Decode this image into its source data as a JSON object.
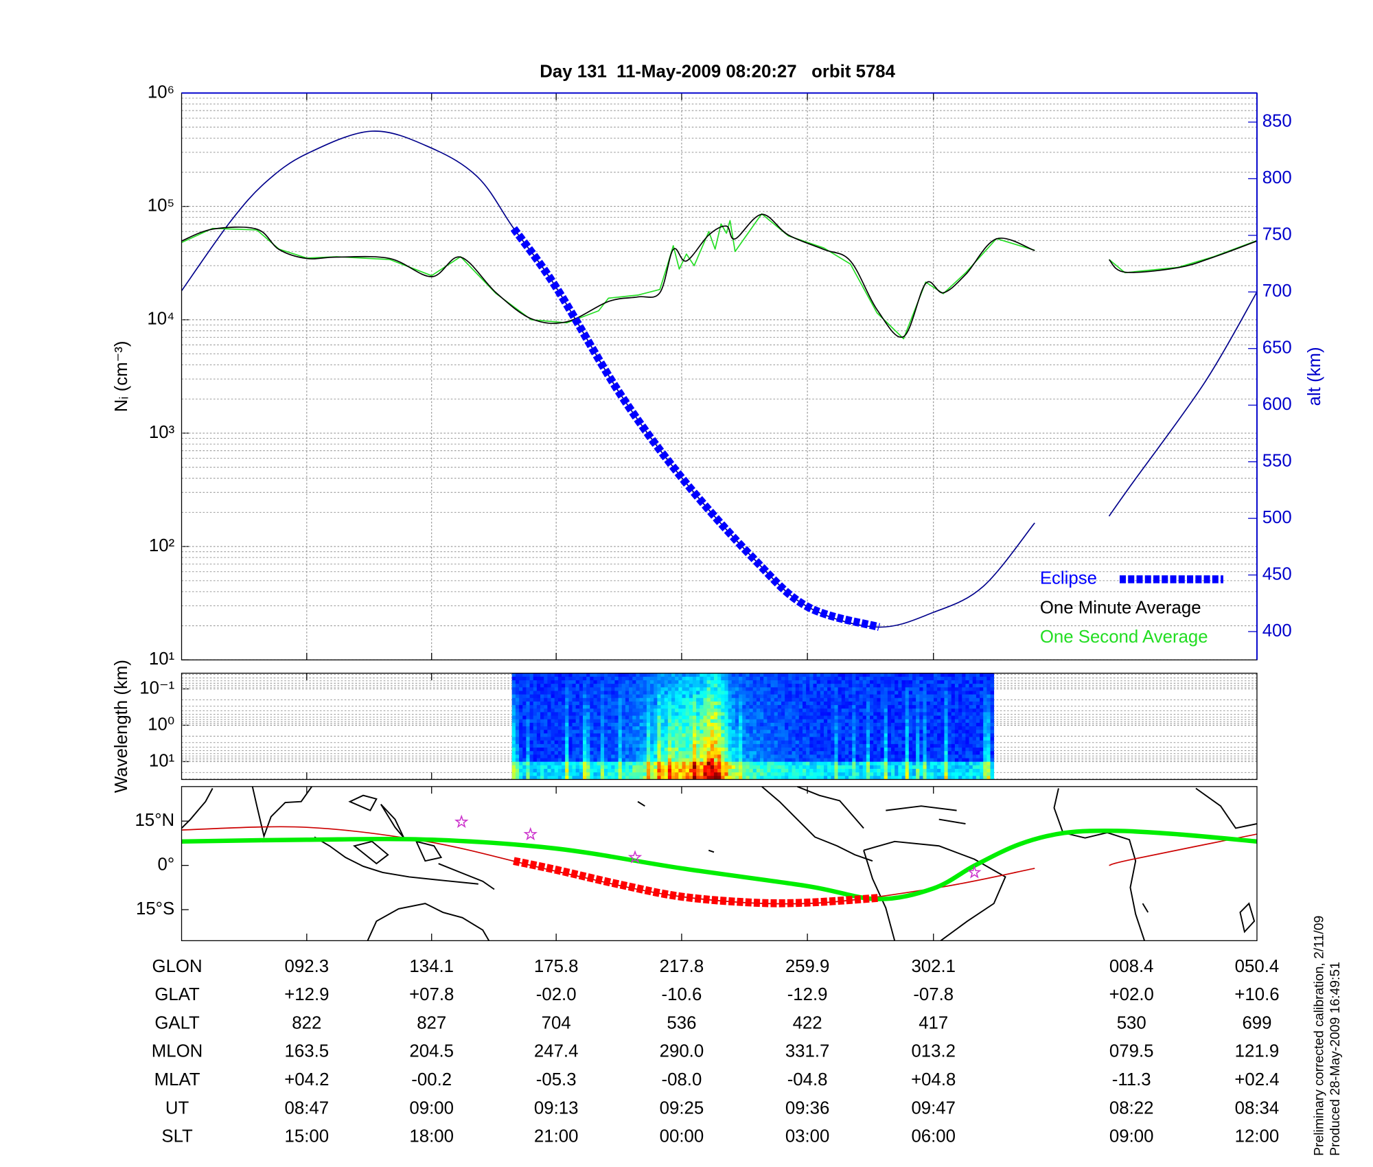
{
  "chart_data": [
    {
      "type": "line",
      "title": "Day 131  11-May-2009 08:20:27   orbit 5784",
      "y_label": "Nᵢ (cm⁻³)",
      "y2_label": "alt (km)",
      "xlim": [
        50.4,
        410.4
      ],
      "xticks": [
        92.3,
        134.1,
        175.8,
        217.8,
        259.9,
        302.1
      ],
      "ylim": [
        10,
        1000000
      ],
      "y_scale": "log",
      "yticks": [
        {
          "value": 10,
          "label": "10¹"
        },
        {
          "value": 100,
          "label": "10²"
        },
        {
          "value": 1000,
          "label": "10³"
        },
        {
          "value": 10000,
          "label": "10⁴"
        },
        {
          "value": 100000,
          "label": "10⁵"
        },
        {
          "value": 1000000,
          "label": "10⁶"
        }
      ],
      "y2lim": [
        375,
        875.7
      ],
      "y2ticks": [
        400,
        450,
        500,
        550,
        600,
        650,
        700,
        750,
        800,
        850
      ],
      "y2_color": "#0000cc",
      "grid": true,
      "legend": "lower right",
      "series": [
        {
          "color": "#00008b",
          "axis": "y2",
          "line_style": "thin",
          "smooth": true,
          "x": [
            50.4,
            66.7,
            78.6,
            92.3,
            114.2,
            134.1,
            149.7,
            161.6,
            175.8,
            197.2,
            217.8,
            241.7,
            259.9,
            283.2,
            302.1,
            318.8,
            336.0,
            348.0,
            360.9,
            368.4,
            392.9,
            410.4
          ],
          "values": [
            701,
            762,
            797,
            822,
            842,
            827,
            801,
            756,
            704,
            610,
            536,
            465,
            422,
            404,
            417,
            440,
            496,
            null,
            502,
            530,
            620,
            700
          ]
        },
        {
          "name": "One Second Average",
          "color": "#22dd22",
          "line_style": "thin",
          "smooth": false,
          "x": [
            50.4,
            60.8,
            75.6,
            83.0,
            92.3,
            102.3,
            120.1,
            134.1,
            143.8,
            155.7,
            167.5,
            179.4,
            190.0,
            193.3,
            203.1,
            210.5,
            213.0,
            215.0,
            217.0,
            219.4,
            222.0,
            226.9,
            229.0,
            231.0,
            232.8,
            234.0,
            235.7,
            244.6,
            253.5,
            265.4,
            274.3,
            283.2,
            292.1,
            299.5,
            305.4,
            312.9,
            323.2,
            336.0,
            348.0,
            360.9,
            366.2,
            384.0,
            395.9,
            410.4
          ],
          "values": [
            48000,
            64000,
            62000,
            42000,
            35000,
            36000,
            34000,
            24500,
            36000,
            17000,
            10000,
            9400,
            12000,
            15500,
            16500,
            18500,
            30000,
            45000,
            28000,
            38000,
            30000,
            60000,
            42000,
            70000,
            58000,
            75000,
            40000,
            86000,
            55000,
            43000,
            31000,
            11500,
            6800,
            21500,
            17000,
            26000,
            52000,
            41000,
            null,
            34000,
            26000,
            29000,
            36000,
            50000
          ]
        },
        {
          "name": "One Minute Average",
          "color": "#000000",
          "line_style": "thin",
          "smooth": true,
          "x": [
            50.4,
            60.8,
            75.6,
            83.0,
            92.3,
            102.3,
            120.1,
            134.1,
            143.8,
            155.7,
            167.5,
            179.4,
            193.3,
            203.1,
            210.5,
            215.0,
            219.4,
            226.9,
            232.8,
            235.7,
            244.6,
            253.5,
            265.4,
            274.3,
            283.2,
            292.1,
            299.5,
            305.4,
            312.9,
            323.2,
            336.0,
            348.0,
            360.9,
            366.2,
            384.0,
            395.9,
            410.4
          ],
          "values": [
            49500,
            63000,
            63000,
            41700,
            34700,
            35700,
            34700,
            24000,
            35700,
            17300,
            10200,
            9600,
            14500,
            15900,
            17300,
            41700,
            33000,
            56000,
            67000,
            51700,
            85000,
            56000,
            41700,
            33000,
            12300,
            7100,
            20900,
            17300,
            25100,
            51700,
            40700,
            null,
            33900,
            26300,
            28800,
            35700,
            49500
          ]
        },
        {
          "name": "Eclipse",
          "color": "#0000ff",
          "axis": "y2",
          "line_style": "dashed-thick",
          "smooth": true,
          "x": [
            161.6,
            175.8,
            197.2,
            217.8,
            241.7,
            259.9,
            283.9
          ],
          "values": [
            756,
            704,
            610,
            536,
            465,
            422,
            404
          ]
        }
      ]
    },
    {
      "type": "spectrogram",
      "y_label": "Wavelength (km)",
      "xlim": [
        50.4,
        410.4
      ],
      "xticks": [
        92.3,
        134.1,
        175.8,
        217.8,
        259.9,
        302.1
      ],
      "ylim": [
        31,
        0.037
      ],
      "y_scale": "log",
      "yticks": [
        {
          "value": 0.1,
          "label": "10⁻¹"
        },
        {
          "value": 1,
          "label": "10⁰"
        },
        {
          "value": 10,
          "label": "10¹"
        }
      ],
      "image_xlim": [
        161.0,
        321.2
      ],
      "grid": true
    },
    {
      "type": "map",
      "xlim": [
        50.4,
        410.4
      ],
      "xticks": [
        92.3,
        134.1,
        175.8,
        217.8,
        259.9,
        302.1
      ],
      "ylim": [
        -25.5,
        26.7
      ],
      "yticks": [
        {
          "value": 15,
          "label": "15°N"
        },
        {
          "value": 0,
          "label": "0°"
        },
        {
          "value": -15,
          "label": "15°S"
        }
      ],
      "grid": false,
      "series": [
        {
          "type": "line",
          "color": "#cc0000",
          "line_style": "thin",
          "smooth": true,
          "x": [
            50.4,
            92.3,
            134.1,
            175.8,
            217.8,
            259.9,
            302.1,
            336.0,
            348.0,
            360.9,
            368.4,
            410.4
          ],
          "values": [
            12.0,
            12.9,
            7.8,
            -2.0,
            -10.6,
            -12.9,
            -7.8,
            -1.0,
            null,
            0.0,
            2.0,
            10.6
          ]
        },
        {
          "type": "line",
          "color": "#00ee00",
          "line_style": "thick",
          "smooth": true,
          "x": [
            50.4,
            92.3,
            134.1,
            175.8,
            217.8,
            259.9,
            283.2,
            302.1,
            316.0,
            331.0,
            345.9,
            363.7,
            384.4,
            410.4
          ],
          "values": [
            8.1,
            8.7,
            8.7,
            5.7,
            -1.0,
            -7.0,
            -11.4,
            -7.8,
            0.0,
            7.2,
            11.0,
            11.7,
            10.5,
            8.1
          ]
        },
        {
          "type": "line",
          "color": "#ff0000",
          "line_style": "dashed-thick",
          "smooth": true,
          "x": [
            161.6,
            175.8,
            197.2,
            217.8,
            241.7,
            259.9,
            283.9
          ],
          "values": [
            1.5,
            -1.5,
            -6.5,
            -10.6,
            -12.6,
            -12.6,
            -11.0
          ]
        },
        {
          "type": "scatter",
          "marker": "star",
          "color": "#cc33cc",
          "x": [
            144.1,
            167.2,
            202.2,
            315.8
          ],
          "values": [
            14.7,
            10.5,
            2.7,
            -2.4
          ]
        }
      ]
    }
  ],
  "table": {
    "row_labels": [
      "GLON",
      "GLAT",
      "GALT",
      "MLON",
      "MLAT",
      "UT",
      "SLT"
    ],
    "columns": [
      {
        "x": 92.3,
        "cells": [
          "092.3",
          "+12.9",
          "822",
          "163.5",
          "+04.2",
          "08:47",
          "15:00"
        ]
      },
      {
        "x": 134.1,
        "cells": [
          "134.1",
          "+07.8",
          "827",
          "204.5",
          "-00.2",
          "09:00",
          "18:00"
        ]
      },
      {
        "x": 175.8,
        "cells": [
          "175.8",
          "-02.0",
          "704",
          "247.4",
          "-05.3",
          "09:13",
          "21:00"
        ]
      },
      {
        "x": 217.8,
        "cells": [
          "217.8",
          "-10.6",
          "536",
          "290.0",
          "-08.0",
          "09:25",
          "00:00"
        ]
      },
      {
        "x": 259.9,
        "cells": [
          "259.9",
          "-12.9",
          "422",
          "331.7",
          "-04.8",
          "09:36",
          "03:00"
        ]
      },
      {
        "x": 302.1,
        "cells": [
          "302.1",
          "-07.8",
          "417",
          "013.2",
          "+04.8",
          "09:47",
          "06:00"
        ]
      },
      {
        "x": 368.4,
        "cells": [
          "008.4",
          "+02.0",
          "530",
          "079.5",
          "-11.3",
          "08:22",
          "09:00"
        ]
      },
      {
        "x": 410.4,
        "cells": [
          "050.4",
          "+10.6",
          "699",
          "121.9",
          "+02.4",
          "08:34",
          "12:00"
        ]
      }
    ]
  },
  "footer": {
    "calibration": "Preliminary corrected calibration, 2/11/09",
    "produced": "Produced 28-May-2009 16:49:51"
  }
}
